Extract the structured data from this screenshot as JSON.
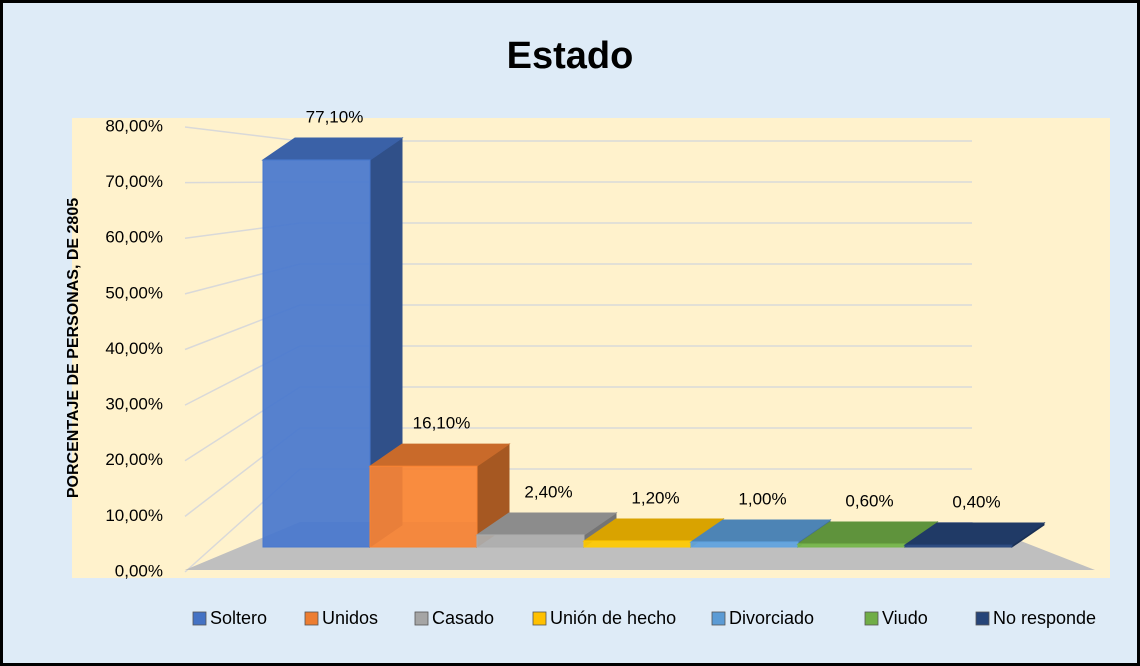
{
  "chart_data": {
    "type": "bar3d",
    "title": "Estado",
    "y_axis_label": "PORCENTAJE DE PERSONAS, DE 2805",
    "ylim": [
      0,
      80
    ],
    "yticks": [
      {
        "value": 0,
        "label": "0,00%"
      },
      {
        "value": 10,
        "label": "10,00%"
      },
      {
        "value": 20,
        "label": "20,00%"
      },
      {
        "value": 30,
        "label": "30,00%"
      },
      {
        "value": 40,
        "label": "40,00%"
      },
      {
        "value": 50,
        "label": "50,00%"
      },
      {
        "value": 60,
        "label": "60,00%"
      },
      {
        "value": 70,
        "label": "70,00%"
      },
      {
        "value": 80,
        "label": "80,00%"
      }
    ],
    "grid": true,
    "legend": "bottom",
    "series": [
      {
        "name": "Soltero",
        "color": "#4472c4",
        "values": [
          77.1
        ],
        "value_labels": [
          "77,10%"
        ]
      },
      {
        "name": "Unidos",
        "color": "#ed7d31",
        "values": [
          16.1
        ],
        "value_labels": [
          "16,10%"
        ]
      },
      {
        "name": "Casado",
        "color": "#a5a5a5",
        "values": [
          2.4
        ],
        "value_labels": [
          "2,40%"
        ]
      },
      {
        "name": "Unión de hecho",
        "color": "#ffc000",
        "values": [
          1.2
        ],
        "value_labels": [
          "1,20%"
        ]
      },
      {
        "name": "Divorciado",
        "color": "#5b9bd5",
        "values": [
          1.0
        ],
        "value_labels": [
          "1,00%"
        ]
      },
      {
        "name": "Viudo",
        "color": "#70ad47",
        "values": [
          0.6
        ],
        "value_labels": [
          "0,60%"
        ]
      },
      {
        "name": "No responde",
        "color": "#264478",
        "values": [
          0.4
        ],
        "value_labels": [
          "0,40%"
        ]
      }
    ]
  }
}
